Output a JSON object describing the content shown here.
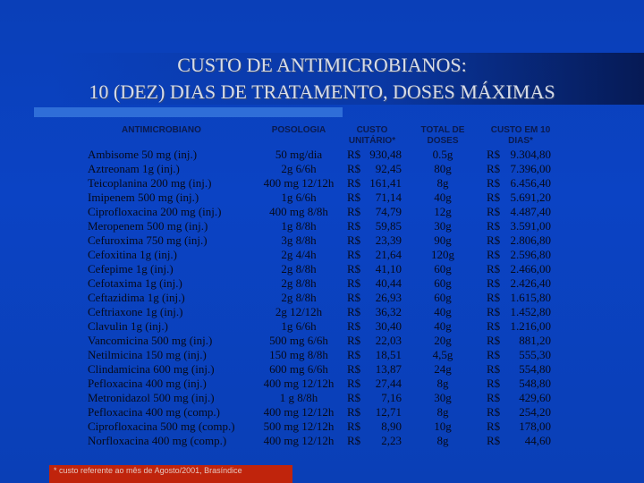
{
  "title": {
    "line1": "CUSTO DE   ANTIMICROBIANOS:",
    "line2": "10 (DEZ) DIAS DE TRATAMENTO, DOSES MÁXIMAS"
  },
  "headers": {
    "antimicrobiano": "ANTIMICROBIANO",
    "posologia": "POSOLOGIA",
    "custo_unitario": "CUSTO\nUNITÁRIO*",
    "total_doses": "TOTAL DE\nDOSES",
    "custo_10_dias": "CUSTO EM 10\nDIAS*"
  },
  "rows": [
    {
      "name": "Ambisome 50 mg (inj.)",
      "dose": "50 mg/dia",
      "rs1": "R$",
      "unit": "930,48",
      "total": "0.5g",
      "rs2": "R$",
      "cost": "9.304,80"
    },
    {
      "name": "Aztreonam 1g (inj.)",
      "dose": "2g 6/6h",
      "rs1": "R$",
      "unit": "92,45",
      "total": "80g",
      "rs2": "R$",
      "cost": "7.396,00"
    },
    {
      "name": "Teicoplanina 200 mg (inj.)",
      "dose": "400 mg 12/12h",
      "rs1": "R$",
      "unit": "161,41",
      "total": "8g",
      "rs2": "R$",
      "cost": "6.456,40"
    },
    {
      "name": "Imipenem 500 mg (inj.)",
      "dose": "1g 6/6h",
      "rs1": "R$",
      "unit": "71,14",
      "total": "40g",
      "rs2": "R$",
      "cost": "5.691,20"
    },
    {
      "name": "Ciprofloxacina 200 mg (inj.)",
      "dose": "400 mg 8/8h",
      "rs1": "R$",
      "unit": "74,79",
      "total": "12g",
      "rs2": "R$",
      "cost": "4.487,40"
    },
    {
      "name": "Meropenem 500 mg (inj.)",
      "dose": "1g 8/8h",
      "rs1": "R$",
      "unit": "59,85",
      "total": "30g",
      "rs2": "R$",
      "cost": "3.591,00"
    },
    {
      "name": "Cefuroxima 750 mg (inj.)",
      "dose": "3g 8/8h",
      "rs1": "R$",
      "unit": "23,39",
      "total": "90g",
      "rs2": "R$",
      "cost": "2.806,80"
    },
    {
      "name": "Cefoxitina 1g (inj.)",
      "dose": "2g 4/4h",
      "rs1": "R$",
      "unit": "21,64",
      "total": "120g",
      "rs2": "R$",
      "cost": "2.596,80"
    },
    {
      "name": "Cefepime 1g (inj.)",
      "dose": "2g 8/8h",
      "rs1": "R$",
      "unit": "41,10",
      "total": "60g",
      "rs2": "R$",
      "cost": "2.466,00"
    },
    {
      "name": "Cefotaxima 1g (inj.)",
      "dose": "2g 8/8h",
      "rs1": "R$",
      "unit": "40,44",
      "total": "60g",
      "rs2": "R$",
      "cost": "2.426,40"
    },
    {
      "name": "Ceftazidima 1g (inj.)",
      "dose": "2g 8/8h",
      "rs1": "R$",
      "unit": "26,93",
      "total": "60g",
      "rs2": "R$",
      "cost": "1.615,80"
    },
    {
      "name": "Ceftriaxone 1g (inj.)",
      "dose": "2g 12/12h",
      "rs1": "R$",
      "unit": "36,32",
      "total": "40g",
      "rs2": "R$",
      "cost": "1.452,80"
    },
    {
      "name": "Clavulin 1g (inj.)",
      "dose": "1g 6/6h",
      "rs1": "R$",
      "unit": "30,40",
      "total": "40g",
      "rs2": "R$",
      "cost": "1.216,00"
    },
    {
      "name": "Vancomicina 500 mg (inj.)",
      "dose": "500 mg 6/6h",
      "rs1": "R$",
      "unit": "22,03",
      "total": "20g",
      "rs2": "R$",
      "cost": "881,20"
    },
    {
      "name": "Netilmicina 150 mg (inj.)",
      "dose": "150 mg 8/8h",
      "rs1": "R$",
      "unit": "18,51",
      "total": "4,5g",
      "rs2": "R$",
      "cost": "555,30"
    },
    {
      "name": "Clindamicina 600 mg (inj.)",
      "dose": "600 mg 6/6h",
      "rs1": "R$",
      "unit": "13,87",
      "total": "24g",
      "rs2": "R$",
      "cost": "554,80"
    },
    {
      "name": "Pefloxacina 400 mg (inj.)",
      "dose": "400 mg 12/12h",
      "rs1": "R$",
      "unit": "27,44",
      "total": "8g",
      "rs2": "R$",
      "cost": "548,80"
    },
    {
      "name": "Metronidazol 500 mg (inj.)",
      "dose": "1 g 8/8h",
      "rs1": "R$",
      "unit": "7,16",
      "total": "30g",
      "rs2": "R$",
      "cost": "429,60"
    },
    {
      "name": "Pefloxacina 400 mg (comp.)",
      "dose": "400 mg 12/12h",
      "rs1": "R$",
      "unit": "12,71",
      "total": "8g",
      "rs2": "R$",
      "cost": "254,20"
    },
    {
      "name": "Ciprofloxacina 500 mg (comp.)",
      "dose": "500 mg 12/12h",
      "rs1": "R$",
      "unit": "8,90",
      "total": "10g",
      "rs2": "R$",
      "cost": "178,00"
    },
    {
      "name": "Norfloxacina 400 mg (comp.)",
      "dose": "400 mg 12/12h",
      "rs1": "R$",
      "unit": "2,23",
      "total": "8g",
      "rs2": "R$",
      "cost": "44,60"
    }
  ],
  "footnote": "* custo referente ao mês de Agosto/2001, Brasíndice",
  "colors": {
    "background": "#0b43c4",
    "title_text": "#d7dce8",
    "header_text": "#0a1a4d",
    "row_text": "#060a1a",
    "accent_bar": "#2f6ed8",
    "footer_bar": "#c0240c"
  }
}
